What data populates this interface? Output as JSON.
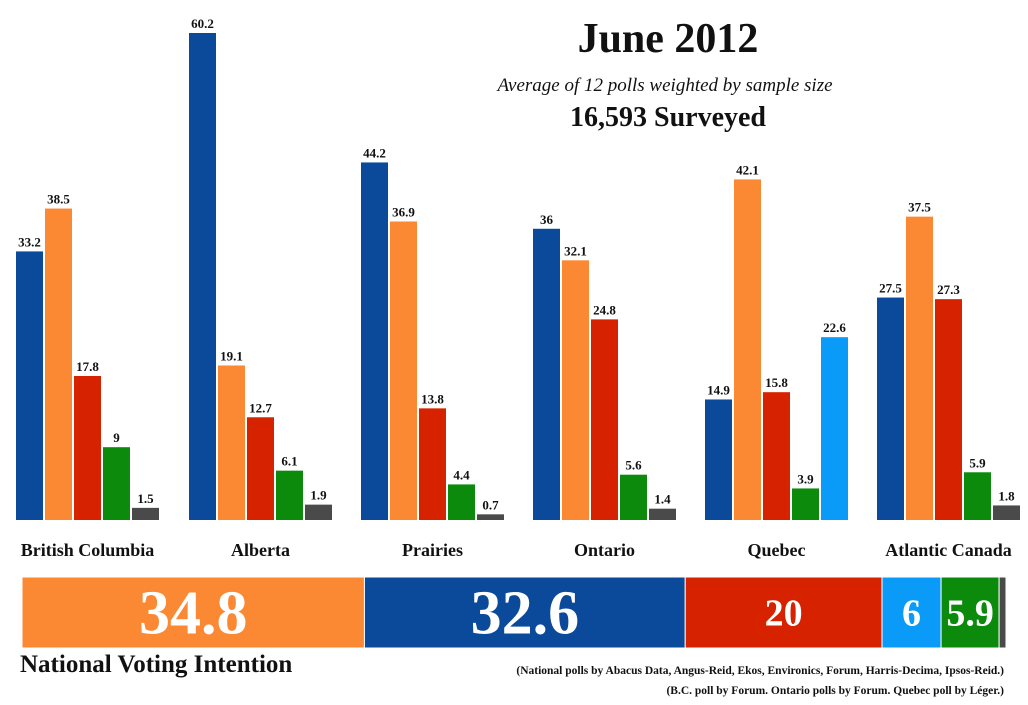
{
  "title": "June 2012",
  "subtitle": "Average of 12 polls weighted by sample size",
  "surveyed": "16,593 Surveyed",
  "national_label": "National Voting Intention",
  "notes": [
    "(National polls by Abacus Data, Angus-Reid, Ekos, Environics, Forum, Harris-Decima, Ipsos-Reid.)",
    "(B.C. poll by Forum. Ontario polls by Forum. Quebec poll by Léger.)"
  ],
  "colors": {
    "blue": "#0b4a9a",
    "orange": "#fb8833",
    "red": "#d72200",
    "green": "#0b8a0b",
    "lightblue": "#0a9bf8",
    "gray": "#4a4a4a"
  },
  "chart_data": [
    {
      "type": "bar",
      "title": "June 2012",
      "categories": [
        "British Columbia",
        "Alberta",
        "Prairies",
        "Ontario",
        "Quebec",
        "Atlantic Canada"
      ],
      "groups": [
        {
          "region": "British Columbia",
          "bars": [
            {
              "color": "blue",
              "value": 33.2
            },
            {
              "color": "orange",
              "value": 38.5
            },
            {
              "color": "red",
              "value": 17.8
            },
            {
              "color": "green",
              "value": 9
            },
            {
              "color": "gray",
              "value": 1.5
            }
          ]
        },
        {
          "region": "Alberta",
          "bars": [
            {
              "color": "blue",
              "value": 60.2
            },
            {
              "color": "orange",
              "value": 19.1
            },
            {
              "color": "red",
              "value": 12.7
            },
            {
              "color": "green",
              "value": 6.1
            },
            {
              "color": "gray",
              "value": 1.9
            }
          ]
        },
        {
          "region": "Prairies",
          "bars": [
            {
              "color": "blue",
              "value": 44.2
            },
            {
              "color": "orange",
              "value": 36.9
            },
            {
              "color": "red",
              "value": 13.8
            },
            {
              "color": "green",
              "value": 4.4
            },
            {
              "color": "gray",
              "value": 0.7
            }
          ]
        },
        {
          "region": "Ontario",
          "bars": [
            {
              "color": "blue",
              "value": 36
            },
            {
              "color": "orange",
              "value": 32.1
            },
            {
              "color": "red",
              "value": 24.8
            },
            {
              "color": "green",
              "value": 5.6
            },
            {
              "color": "gray",
              "value": 1.4
            }
          ]
        },
        {
          "region": "Quebec",
          "bars": [
            {
              "color": "blue",
              "value": 14.9
            },
            {
              "color": "orange",
              "value": 42.1
            },
            {
              "color": "red",
              "value": 15.8
            },
            {
              "color": "green",
              "value": 3.9
            },
            {
              "color": "lightblue",
              "value": 22.6
            }
          ]
        },
        {
          "region": "Atlantic Canada",
          "bars": [
            {
              "color": "blue",
              "value": 27.5
            },
            {
              "color": "orange",
              "value": 37.5
            },
            {
              "color": "red",
              "value": 27.3
            },
            {
              "color": "green",
              "value": 5.9
            },
            {
              "color": "gray",
              "value": 1.8
            }
          ]
        }
      ],
      "ylim": [
        0,
        60.2
      ]
    },
    {
      "type": "bar",
      "orientation": "horizontal-stacked",
      "title": "National Voting Intention",
      "segments": [
        {
          "color": "orange",
          "value": 34.8
        },
        {
          "color": "blue",
          "value": 32.6
        },
        {
          "color": "red",
          "value": 20
        },
        {
          "color": "lightblue",
          "value": 6
        },
        {
          "color": "green",
          "value": 5.9
        },
        {
          "color": "gray",
          "value": 0.7
        }
      ]
    }
  ]
}
